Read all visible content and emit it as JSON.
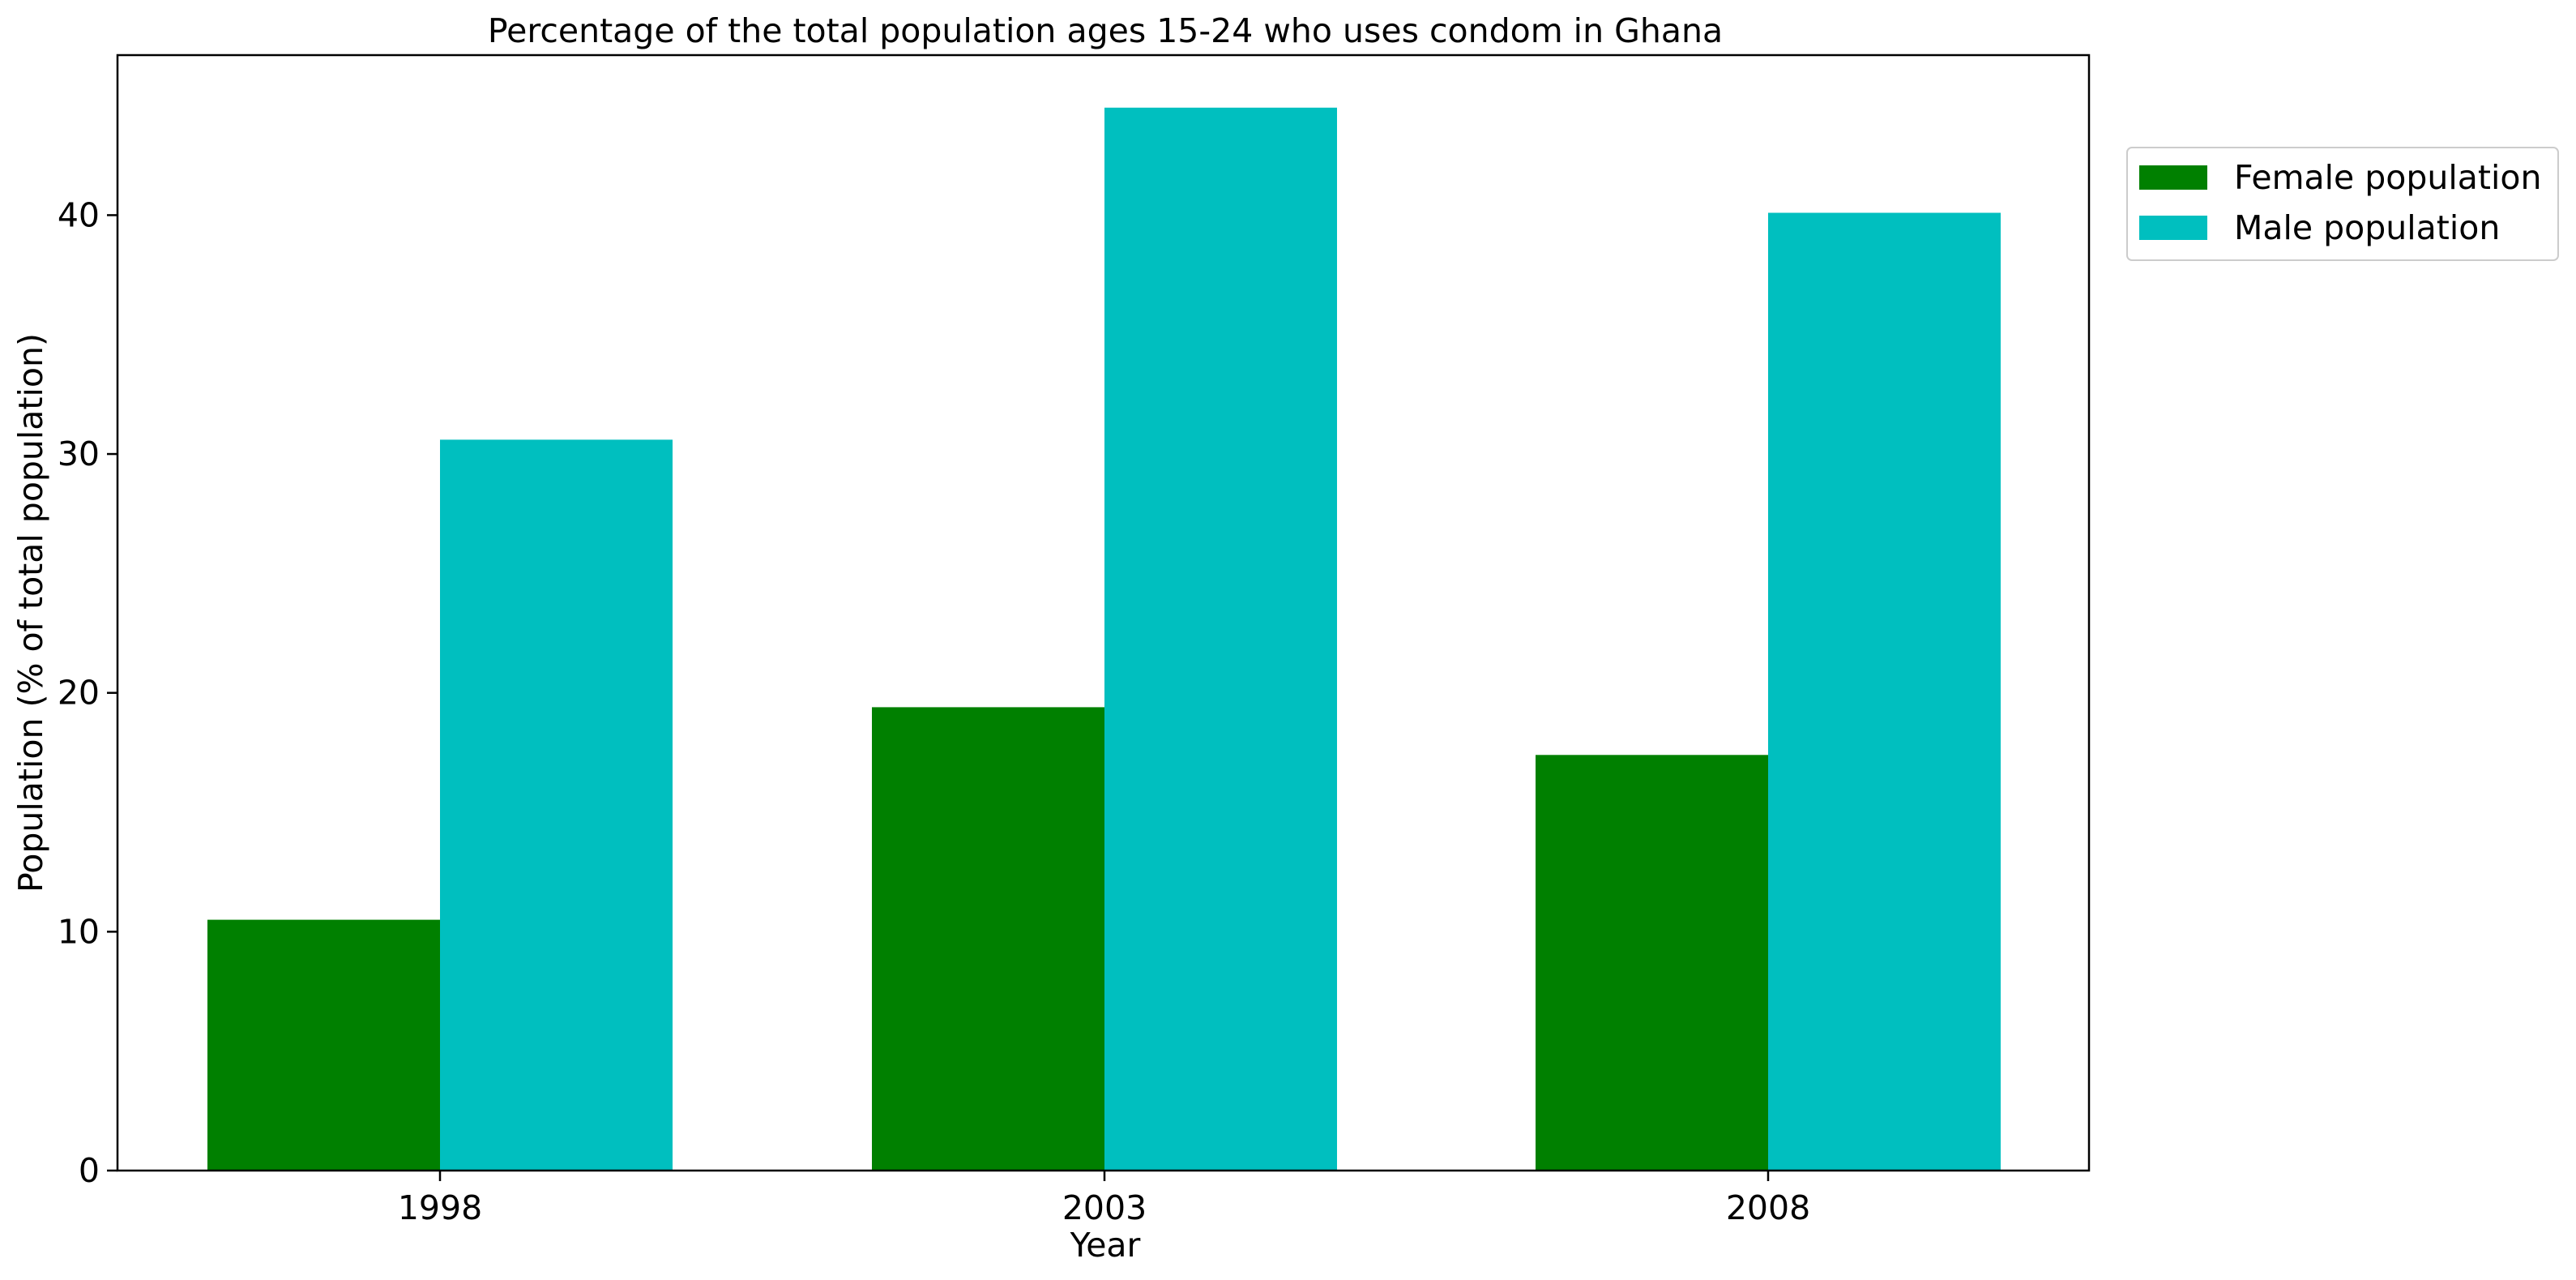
{
  "chart_data": {
    "type": "bar",
    "title": "Percentage of the total population ages 15-24 who uses condom in Ghana",
    "xlabel": "Year",
    "ylabel": "Population (% of total population)",
    "categories": [
      "1998",
      "2003",
      "2008"
    ],
    "series": [
      {
        "name": "Female population",
        "color": "#008000",
        "values": [
          10.5,
          19.4,
          17.4
        ]
      },
      {
        "name": "Male population",
        "color": "#00bfbf",
        "values": [
          30.6,
          44.5,
          40.1
        ]
      }
    ],
    "ylim": [
      0,
      46.7
    ],
    "yticks": [
      0,
      10,
      20,
      30,
      40
    ],
    "grid": false,
    "legend_position": "outside-right-top"
  }
}
